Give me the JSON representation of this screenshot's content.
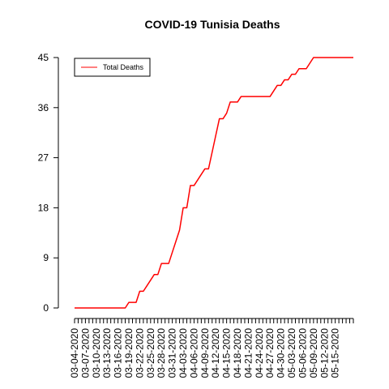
{
  "chart_data": {
    "type": "line",
    "title": "COVID-19 Tunisia Deaths",
    "xlabel": "",
    "ylabel": "",
    "ylim": [
      0,
      45
    ],
    "yticks": [
      0,
      9,
      18,
      27,
      36,
      45
    ],
    "grid": false,
    "legend_position": "top-left",
    "x_start": "03-04-2020",
    "x_tick_labels": [
      "03-04-2020",
      "03-07-2020",
      "03-10-2020",
      "03-13-2020",
      "03-16-2020",
      "03-19-2020",
      "03-22-2020",
      "03-25-2020",
      "03-28-2020",
      "03-31-2020",
      "04-03-2020",
      "04-06-2020",
      "04-09-2020",
      "04-12-2020",
      "04-15-2020",
      "04-18-2020",
      "04-21-2020",
      "04-24-2020",
      "04-27-2020",
      "04-30-2020",
      "05-03-2020",
      "05-06-2020",
      "05-09-2020",
      "05-12-2020",
      "05-15-2020"
    ],
    "series": [
      {
        "name": "Total Deaths",
        "color": "#ff0000",
        "values": [
          0,
          0,
          0,
          0,
          0,
          0,
          0,
          0,
          0,
          0,
          0,
          0,
          0,
          0,
          0,
          1,
          1,
          1,
          3,
          3,
          4,
          5,
          6,
          6,
          8,
          8,
          8,
          10,
          12,
          14,
          18,
          18,
          22,
          22,
          23,
          24,
          25,
          25,
          28,
          31,
          34,
          34,
          35,
          37,
          37,
          37,
          38,
          38,
          38,
          38,
          38,
          38,
          38,
          38,
          38,
          39,
          40,
          40,
          41,
          41,
          42,
          42,
          43,
          43,
          43,
          44,
          45,
          45,
          45,
          45,
          45,
          45,
          45,
          45,
          45,
          45,
          45,
          45
        ]
      }
    ]
  }
}
